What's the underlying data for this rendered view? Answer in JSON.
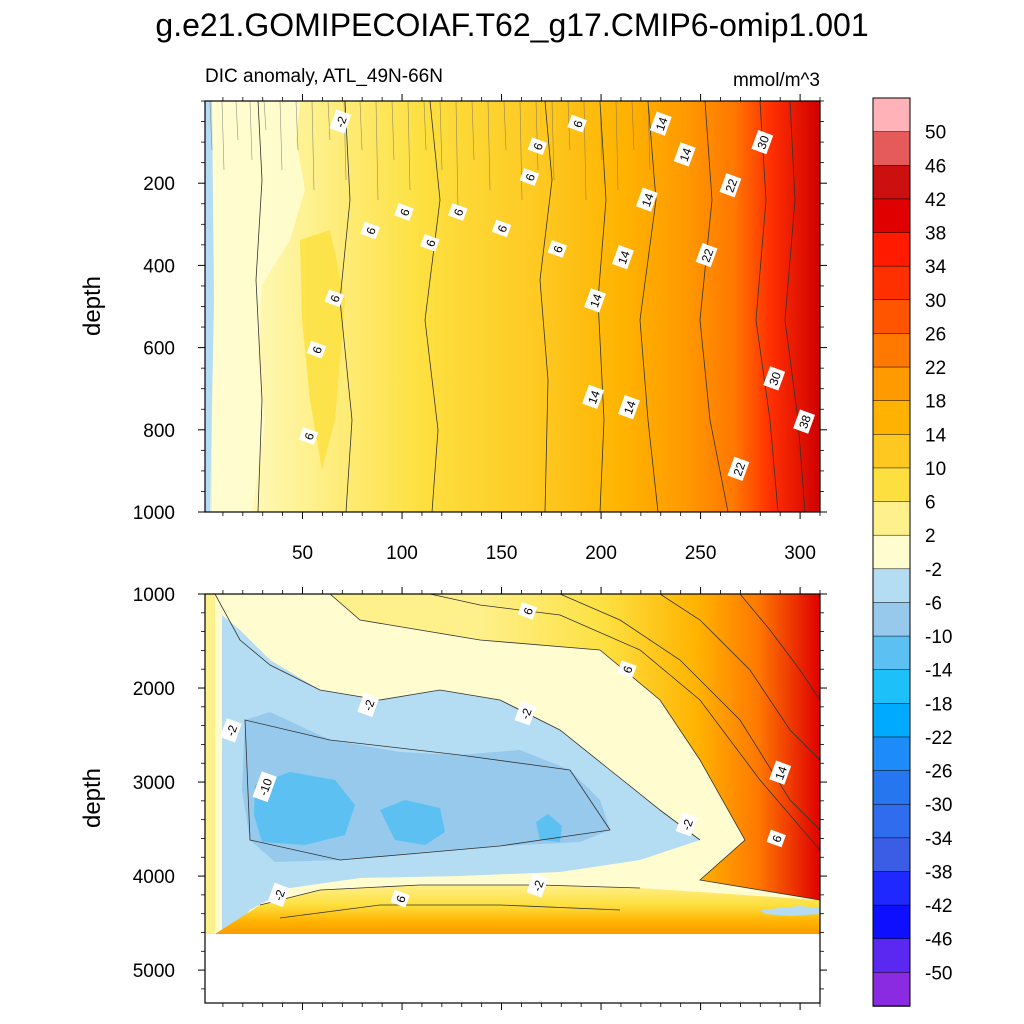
{
  "figure": {
    "title": "g.e21.GOMIPECOIAF.T62_g17.CMIP6-omip1.001"
  },
  "chart_data": [
    {
      "type": "heatmap",
      "subtitle_left": "DIC anomaly, ATL_49N-66N",
      "subtitle_right": "mmol/m^3",
      "ylabel": "depth",
      "xlim": [
        1,
        310
      ],
      "ylim": [
        1000,
        0
      ],
      "xticks": [
        50,
        100,
        150,
        200,
        250,
        300
      ],
      "yticks": [
        200,
        400,
        600,
        800,
        1000
      ],
      "contour_labels": [
        {
          "text": "-2",
          "x": 69,
          "y": 50
        },
        {
          "text": "6",
          "x": 188,
          "y": 55
        },
        {
          "text": "6",
          "x": 168,
          "y": 110
        },
        {
          "text": "6",
          "x": 164,
          "y": 185
        },
        {
          "text": "6",
          "x": 101,
          "y": 270
        },
        {
          "text": "6",
          "x": 84,
          "y": 315
        },
        {
          "text": "6",
          "x": 128,
          "y": 270
        },
        {
          "text": "6",
          "x": 114,
          "y": 345
        },
        {
          "text": "6",
          "x": 150,
          "y": 310
        },
        {
          "text": "6",
          "x": 178,
          "y": 360
        },
        {
          "text": "6",
          "x": 66,
          "y": 480
        },
        {
          "text": "6",
          "x": 57,
          "y": 605
        },
        {
          "text": "6",
          "x": 53,
          "y": 815
        },
        {
          "text": "14",
          "x": 230,
          "y": 55
        },
        {
          "text": "14",
          "x": 242,
          "y": 130
        },
        {
          "text": "14",
          "x": 223,
          "y": 240
        },
        {
          "text": "14",
          "x": 211,
          "y": 380
        },
        {
          "text": "14",
          "x": 197,
          "y": 485
        },
        {
          "text": "14",
          "x": 196,
          "y": 720
        },
        {
          "text": "14",
          "x": 214,
          "y": 745
        },
        {
          "text": "22",
          "x": 265,
          "y": 205
        },
        {
          "text": "22",
          "x": 253,
          "y": 375
        },
        {
          "text": "22",
          "x": 269,
          "y": 895
        },
        {
          "text": "30",
          "x": 281,
          "y": 100
        },
        {
          "text": "30",
          "x": 287,
          "y": 675
        },
        {
          "text": "38",
          "x": 302,
          "y": 780
        }
      ]
    },
    {
      "type": "heatmap",
      "ylabel": "depth",
      "xlim": [
        1,
        310
      ],
      "ylim": [
        5350,
        1000
      ],
      "yticks": [
        1000,
        2000,
        3000,
        4000,
        5000
      ],
      "no_data_below": 4650,
      "contour_labels": [
        {
          "text": "6",
          "x": 163,
          "y": 1180
        },
        {
          "text": "6",
          "x": 213,
          "y": 1800
        },
        {
          "text": "-2",
          "x": 83,
          "y": 2180
        },
        {
          "text": "-2",
          "x": 162,
          "y": 2270
        },
        {
          "text": "-2",
          "x": 14,
          "y": 2450
        },
        {
          "text": "-10",
          "x": 31,
          "y": 3050
        },
        {
          "text": "14",
          "x": 290,
          "y": 2900
        },
        {
          "text": "-2",
          "x": 243,
          "y": 3450
        },
        {
          "text": "6",
          "x": 288,
          "y": 3600
        },
        {
          "text": "-2",
          "x": 168,
          "y": 4100
        },
        {
          "text": "-2",
          "x": 38,
          "y": 4200
        },
        {
          "text": "6",
          "x": 99,
          "y": 4240
        }
      ]
    }
  ],
  "colorbar": {
    "labels": [
      "50",
      "46",
      "42",
      "38",
      "34",
      "30",
      "26",
      "22",
      "18",
      "14",
      "10",
      "6",
      "2",
      "-2",
      "-6",
      "-10",
      "-14",
      "-18",
      "-22",
      "-26",
      "-30",
      "-34",
      "-38",
      "-42",
      "-46",
      "-50"
    ],
    "colors_top_to_bottom": [
      "#ffb3b8",
      "#e55a5a",
      "#cc1010",
      "#e00000",
      "#ff1a00",
      "#ff3000",
      "#ff5500",
      "#ff7800",
      "#ff9a00",
      "#ffb300",
      "#fec820",
      "#fde040",
      "#fef08a",
      "#fffdd0",
      "#b4dcf2",
      "#96c9ec",
      "#5cc0f2",
      "#1ec0fa",
      "#00aaff",
      "#1e8cf8",
      "#2676f0",
      "#2f6cee",
      "#3b5de6",
      "#1e28ff",
      "#0f0fff",
      "#5a28f0",
      "#8a2be2"
    ]
  }
}
